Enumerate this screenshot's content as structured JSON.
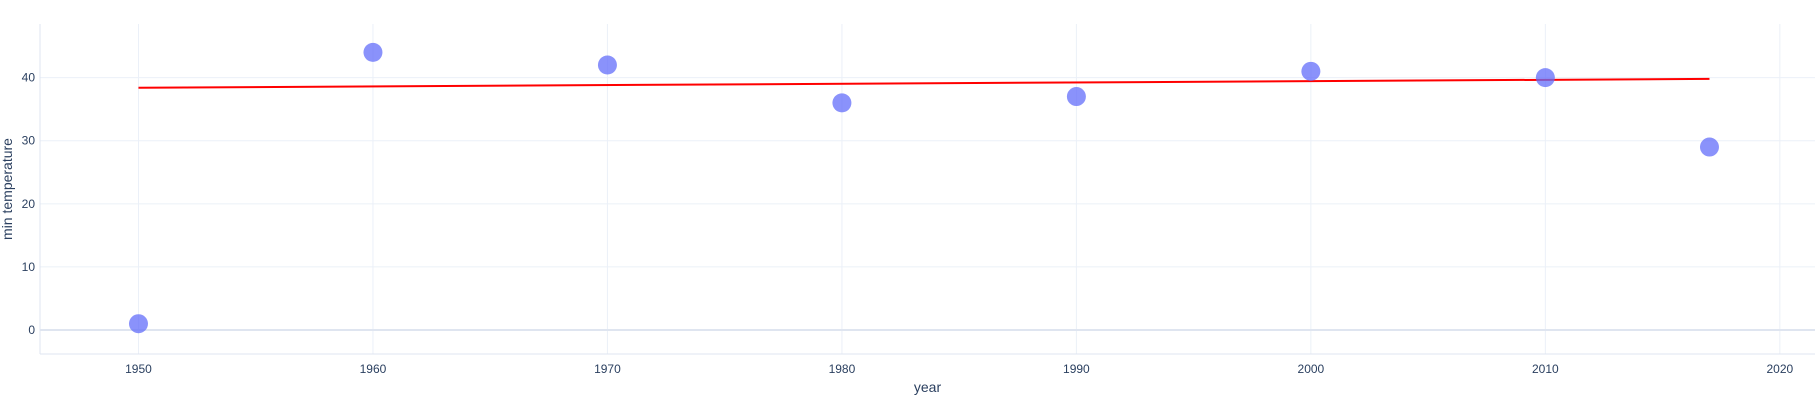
{
  "chart_data": {
    "type": "scatter",
    "xlabel": "year",
    "ylabel": "min temperature",
    "xlim": [
      1945.8,
      2021.5
    ],
    "ylim": [
      -3.8,
      48.5
    ],
    "x_ticks": [
      1950,
      1960,
      1970,
      1980,
      1990,
      2000,
      2010,
      2020
    ],
    "y_ticks": [
      0,
      10,
      20,
      30,
      40
    ],
    "grid": true,
    "legend": "none",
    "series": [
      {
        "type": "scatter",
        "x": [
          1950,
          1960,
          1970,
          1980,
          1990,
          2000,
          2010,
          2017
        ],
        "y": [
          1,
          44,
          42,
          36,
          37,
          41,
          40,
          29
        ],
        "color": "#636efa"
      },
      {
        "type": "line",
        "x": [
          1950,
          2017
        ],
        "y": [
          38.4,
          39.8
        ],
        "color": "#ff0000"
      }
    ]
  }
}
